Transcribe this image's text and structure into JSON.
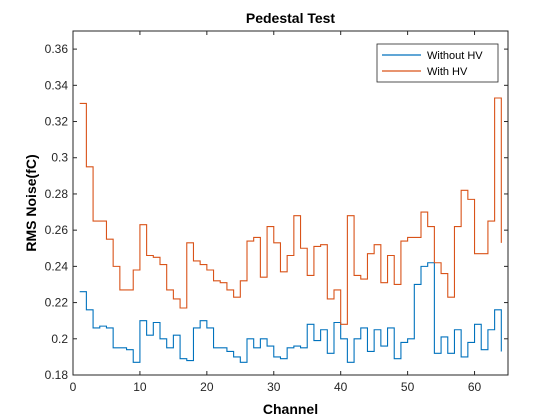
{
  "chart_data": {
    "type": "line",
    "style": "stairs",
    "title": "Pedestal Test",
    "xlabel": "Channel",
    "ylabel": "RMS Noise(fC)",
    "xlim": [
      0,
      65
    ],
    "ylim": [
      0.18,
      0.37
    ],
    "xticks": [
      0,
      10,
      20,
      30,
      40,
      50,
      60
    ],
    "yticks": [
      0.18,
      0.2,
      0.22,
      0.24,
      0.26,
      0.28,
      0.3,
      0.32,
      0.34,
      0.36
    ],
    "ytick_labels": [
      "0.18",
      "0.2",
      "0.22",
      "0.24",
      "0.26",
      "0.28",
      "0.3",
      "0.32",
      "0.34",
      "0.36"
    ],
    "grid": false,
    "legend_position": "top-right",
    "series": [
      {
        "name": "Without HV",
        "color": "#0072BD",
        "x": [
          1,
          2,
          3,
          4,
          5,
          6,
          7,
          8,
          9,
          10,
          11,
          12,
          13,
          14,
          15,
          16,
          17,
          18,
          19,
          20,
          21,
          22,
          23,
          24,
          25,
          26,
          27,
          28,
          29,
          30,
          31,
          32,
          33,
          34,
          35,
          36,
          37,
          38,
          39,
          40,
          41,
          42,
          43,
          44,
          45,
          46,
          47,
          48,
          49,
          50,
          51,
          52,
          53,
          54,
          55,
          56,
          57,
          58,
          59,
          60,
          61,
          62,
          63,
          64
        ],
        "values": [
          0.226,
          0.216,
          0.206,
          0.207,
          0.206,
          0.195,
          0.195,
          0.194,
          0.187,
          0.21,
          0.202,
          0.209,
          0.2,
          0.195,
          0.202,
          0.189,
          0.188,
          0.206,
          0.21,
          0.206,
          0.195,
          0.195,
          0.193,
          0.19,
          0.187,
          0.2,
          0.195,
          0.2,
          0.196,
          0.19,
          0.189,
          0.195,
          0.196,
          0.195,
          0.208,
          0.199,
          0.205,
          0.192,
          0.209,
          0.2,
          0.187,
          0.2,
          0.206,
          0.193,
          0.205,
          0.196,
          0.206,
          0.189,
          0.198,
          0.2,
          0.23,
          0.24,
          0.242,
          0.192,
          0.201,
          0.192,
          0.205,
          0.19,
          0.198,
          0.208,
          0.194,
          0.205,
          0.216,
          0.193
        ]
      },
      {
        "name": "With HV",
        "color": "#D95319",
        "x": [
          1,
          2,
          3,
          4,
          5,
          6,
          7,
          8,
          9,
          10,
          11,
          12,
          13,
          14,
          15,
          16,
          17,
          18,
          19,
          20,
          21,
          22,
          23,
          24,
          25,
          26,
          27,
          28,
          29,
          30,
          31,
          32,
          33,
          34,
          35,
          36,
          37,
          38,
          39,
          40,
          41,
          42,
          43,
          44,
          45,
          46,
          47,
          48,
          49,
          50,
          51,
          52,
          53,
          54,
          55,
          56,
          57,
          58,
          59,
          60,
          61,
          62,
          63,
          64
        ],
        "values": [
          0.33,
          0.295,
          0.265,
          0.265,
          0.255,
          0.24,
          0.227,
          0.227,
          0.238,
          0.263,
          0.246,
          0.245,
          0.241,
          0.227,
          0.222,
          0.217,
          0.253,
          0.243,
          0.241,
          0.238,
          0.232,
          0.231,
          0.227,
          0.223,
          0.232,
          0.254,
          0.256,
          0.234,
          0.262,
          0.253,
          0.237,
          0.246,
          0.268,
          0.25,
          0.235,
          0.251,
          0.252,
          0.222,
          0.227,
          0.208,
          0.268,
          0.235,
          0.233,
          0.247,
          0.252,
          0.231,
          0.246,
          0.23,
          0.254,
          0.256,
          0.256,
          0.27,
          0.262,
          0.242,
          0.236,
          0.223,
          0.262,
          0.282,
          0.277,
          0.247,
          0.247,
          0.265,
          0.333,
          0.253
        ]
      }
    ]
  }
}
